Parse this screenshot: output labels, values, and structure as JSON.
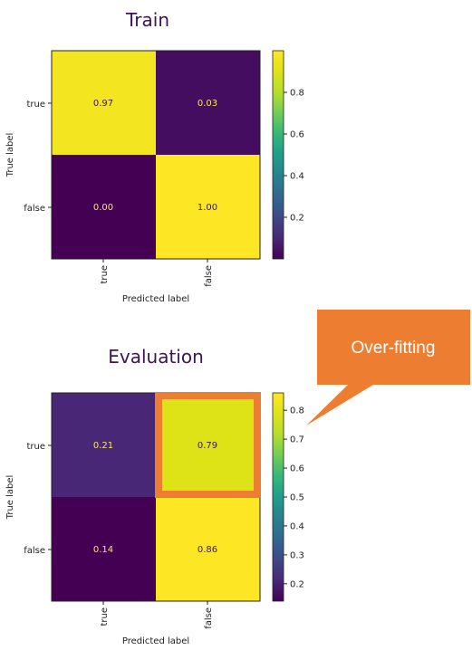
{
  "chart_data": [
    {
      "type": "heatmap",
      "title": "Train",
      "xlabel": "Predicted label",
      "ylabel": "True label",
      "x_categories": [
        "true",
        "false"
      ],
      "y_categories": [
        "true",
        "false"
      ],
      "values": [
        [
          0.97,
          0.03
        ],
        [
          0.0,
          1.0
        ]
      ],
      "value_labels": [
        [
          "0.97",
          "0.03"
        ],
        [
          "0.00",
          "1.00"
        ]
      ],
      "colorbar": {
        "ticks": [
          "0.8",
          "0.6",
          "0.4",
          "0.2"
        ],
        "tick_values": [
          0.8,
          0.6,
          0.4,
          0.2
        ],
        "range": [
          0.0,
          1.0
        ]
      },
      "colormap": "viridis"
    },
    {
      "type": "heatmap",
      "title": "Evaluation",
      "xlabel": "Predicted label",
      "ylabel": "True label",
      "x_categories": [
        "true",
        "false"
      ],
      "y_categories": [
        "true",
        "false"
      ],
      "values": [
        [
          0.21,
          0.79
        ],
        [
          0.14,
          0.86
        ]
      ],
      "value_labels": [
        [
          "0.21",
          "0.79"
        ],
        [
          "0.14",
          "0.86"
        ]
      ],
      "colorbar": {
        "ticks": [
          "0.8",
          "0.7",
          "0.6",
          "0.5",
          "0.4",
          "0.3",
          "0.2"
        ],
        "tick_values": [
          0.8,
          0.7,
          0.6,
          0.5,
          0.4,
          0.3,
          0.2
        ],
        "range": [
          0.14,
          0.86
        ]
      },
      "colormap": "viridis",
      "highlight_cell": [
        0,
        1
      ],
      "highlight_color": "#ed7d31"
    }
  ],
  "callout": {
    "text": "Over-fitting",
    "color": "#ed7d31"
  }
}
